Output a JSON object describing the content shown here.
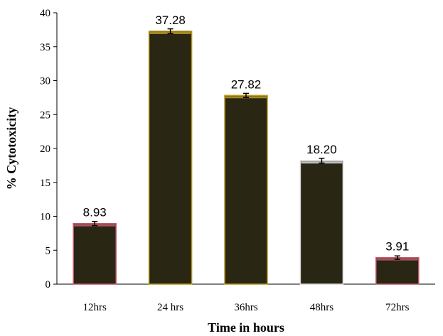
{
  "chart_data": {
    "type": "bar",
    "categories": [
      "12hrs",
      "24 hrs",
      "36hrs",
      "48hrs",
      "72hrs"
    ],
    "values": [
      8.93,
      37.28,
      27.82,
      18.2,
      3.91
    ],
    "data_labels": [
      "8.93",
      "37.28",
      "27.82",
      "18.20",
      "3.91"
    ],
    "error": [
      0.2,
      0.25,
      0.2,
      0.25,
      0.15
    ],
    "title": "",
    "xlabel": "Time in hours",
    "ylabel": "% Cytotoxicity",
    "ylim": [
      0,
      40
    ],
    "yticks": [
      0,
      5,
      10,
      15,
      20,
      25,
      30,
      35,
      40
    ],
    "grid": false,
    "legend": "none",
    "colors": {
      "bar_fill": "#2a2614",
      "bar_edge": [
        "#c05a6a",
        "#b89a20",
        "#b89a20",
        "#d8d8d8",
        "#c05a6a"
      ],
      "axis": "#000000"
    }
  }
}
